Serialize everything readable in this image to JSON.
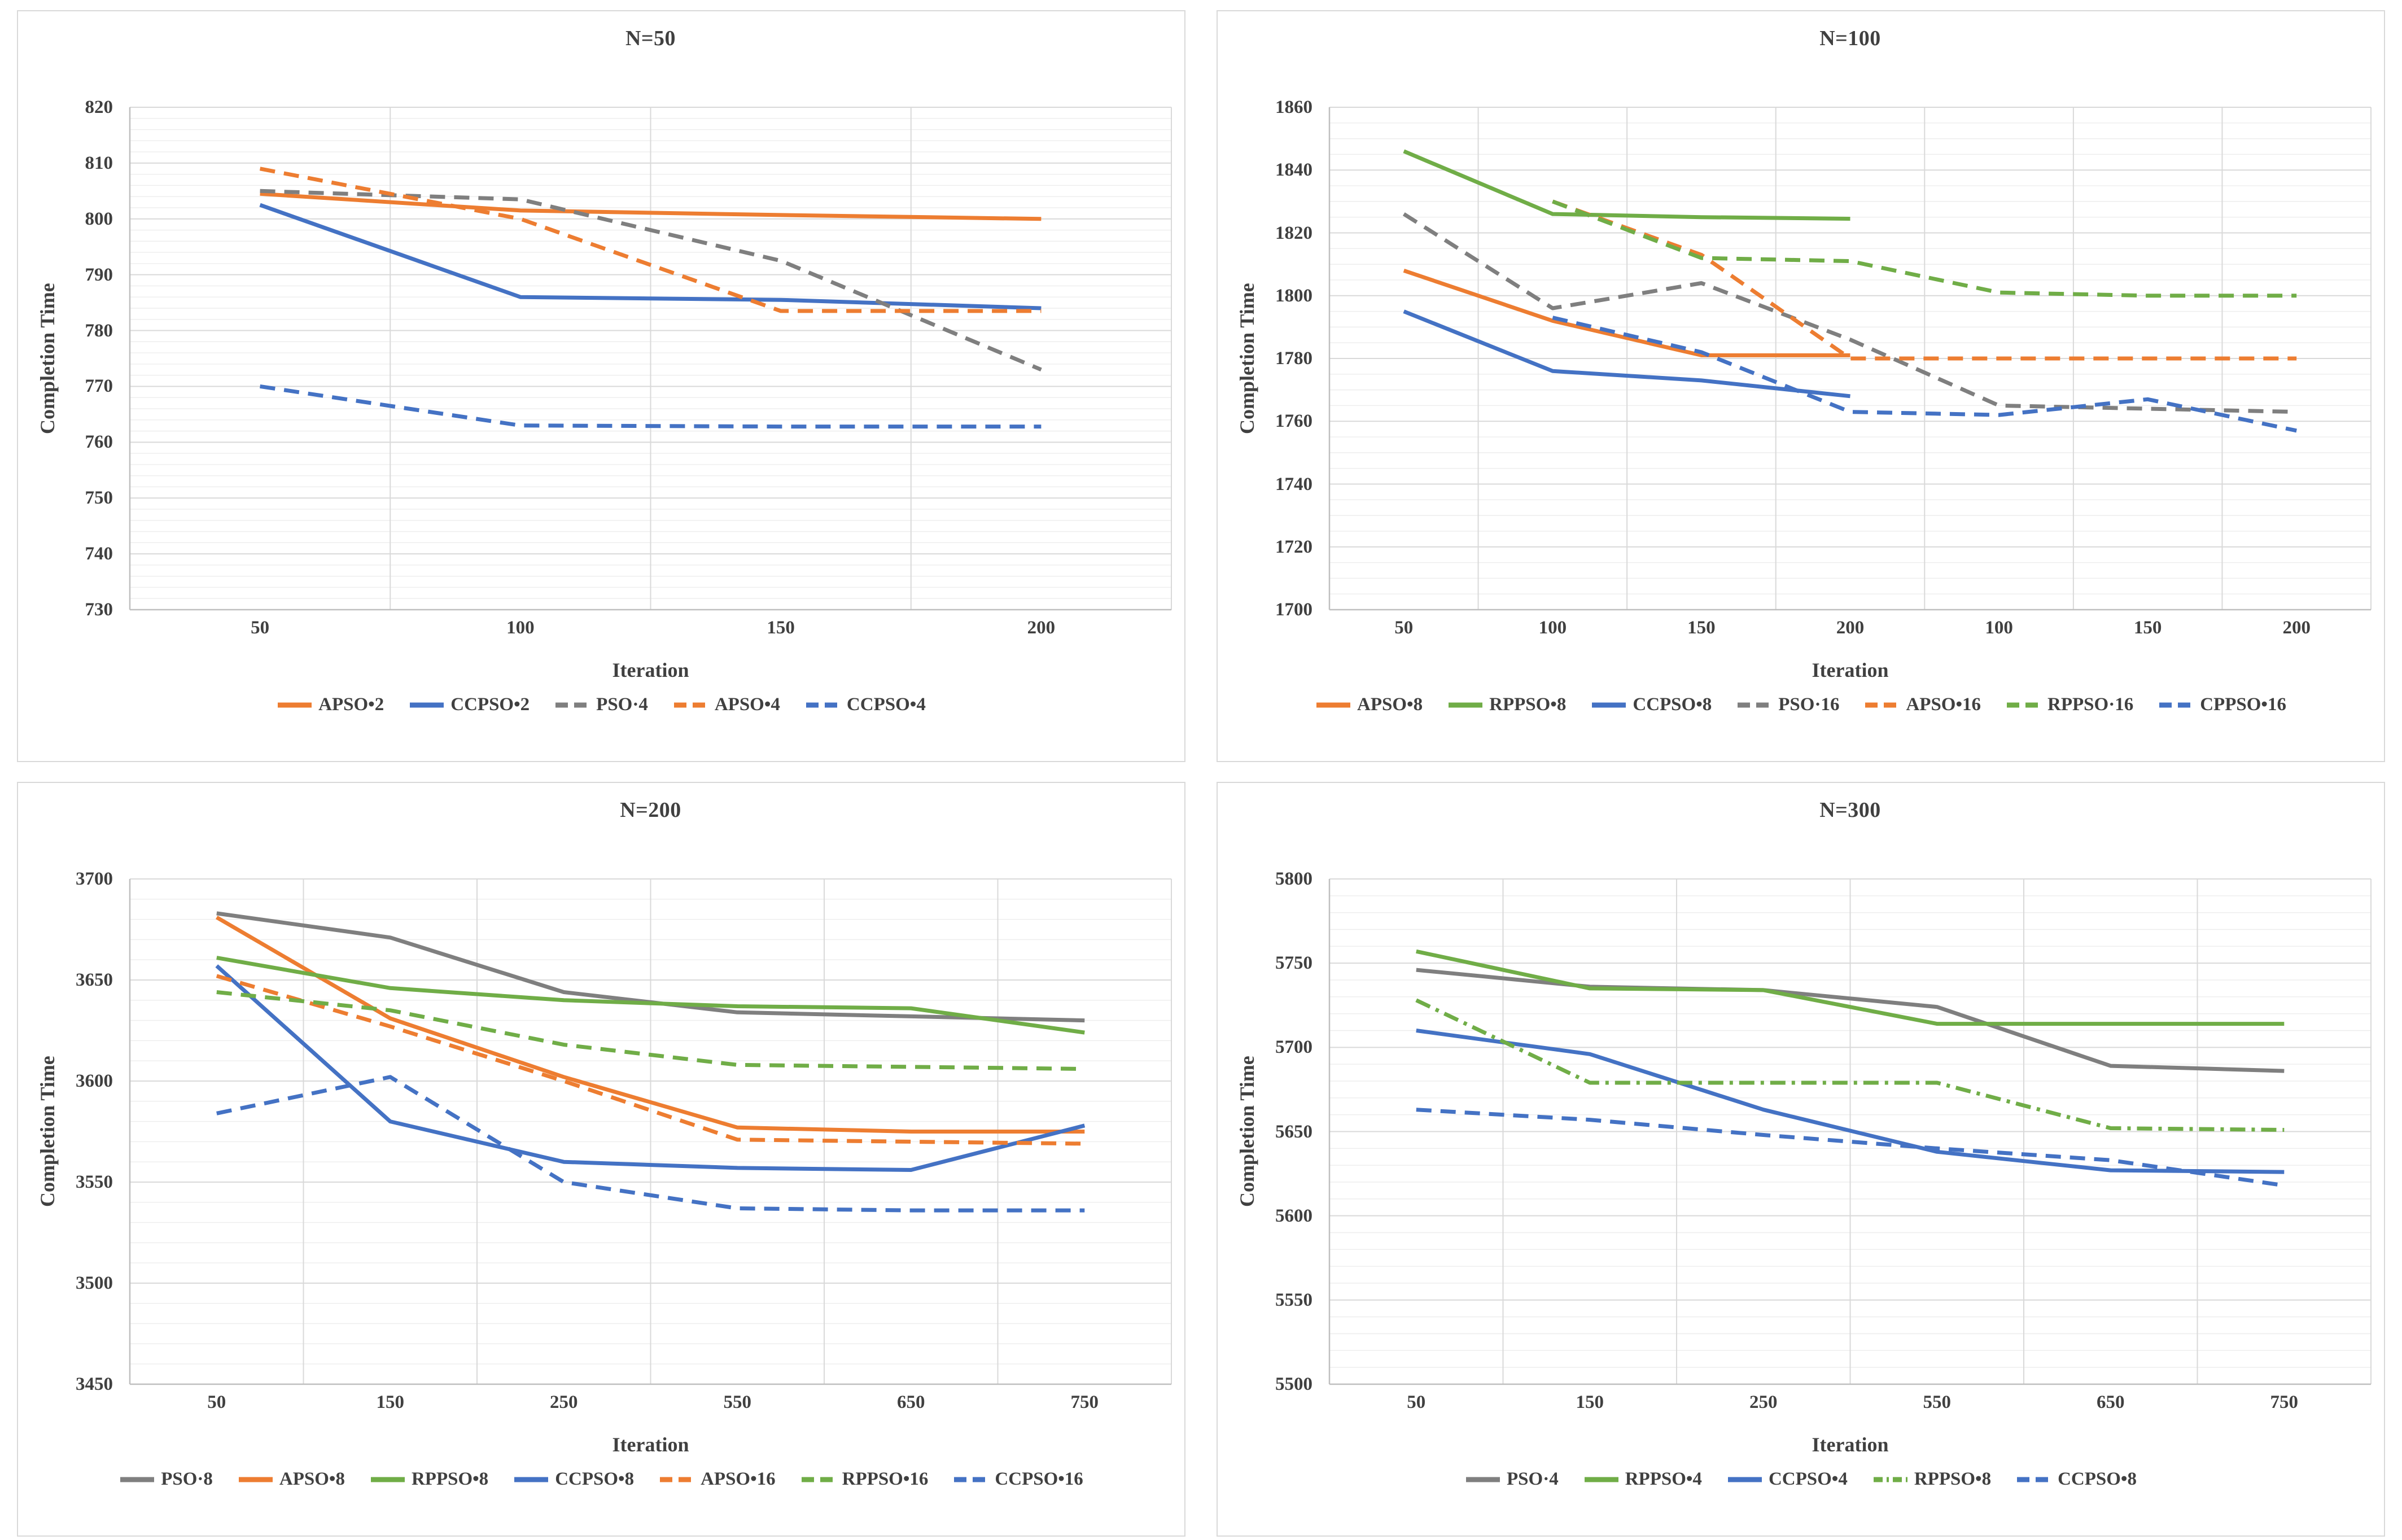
{
  "chart_data": [
    {
      "type": "line",
      "title": "N=50",
      "xlabel": "Iteration",
      "ylabel": "Completion Time",
      "categories": [
        "50",
        "100",
        "150",
        "200"
      ],
      "y_axis": {
        "min": 730,
        "max": 820,
        "major_step": 10,
        "minor_step": 2
      },
      "legend_position": "bottom",
      "grid": true,
      "series": [
        {
          "name": "APSO•2",
          "color": "#ED7D31",
          "style": "solid",
          "values": [
            804.5,
            801.5,
            800.7,
            800
          ]
        },
        {
          "name": "CCPSO•2",
          "color": "#4472C4",
          "style": "solid",
          "values": [
            802.5,
            786,
            785.5,
            784
          ]
        },
        {
          "name": "PSO·4",
          "color": "#7F7F7F",
          "style": "dash",
          "values": [
            805,
            803.5,
            792.5,
            773
          ]
        },
        {
          "name": "APSO•4",
          "color": "#ED7D31",
          "style": "dash",
          "values": [
            809,
            800,
            783.5,
            783.5
          ]
        },
        {
          "name": "CCPSO•4",
          "color": "#4472C4",
          "style": "dash",
          "values": [
            770,
            763,
            762.8,
            762.8
          ]
        }
      ]
    },
    {
      "type": "line",
      "title": "N=100",
      "xlabel": "Iteration",
      "ylabel": "Completion Time",
      "categories": [
        "50",
        "100",
        "150",
        "200",
        "100",
        "150",
        "200"
      ],
      "y_axis": {
        "min": 1700,
        "max": 1860,
        "major_step": 20,
        "minor_step": 5
      },
      "legend_position": "bottom",
      "grid": true,
      "series": [
        {
          "name": "APSO•8",
          "color": "#ED7D31",
          "style": "solid",
          "values": [
            1808,
            1792,
            1781,
            1781,
            null,
            null,
            null
          ]
        },
        {
          "name": "RPPSO•8",
          "color": "#70AD47",
          "style": "solid",
          "values": [
            1846,
            1826,
            1825,
            1824.5,
            null,
            null,
            null
          ]
        },
        {
          "name": "CCPSO•8",
          "color": "#4472C4",
          "style": "solid",
          "values": [
            1795,
            1776,
            1773,
            1768,
            null,
            null,
            null
          ]
        },
        {
          "name": "PSO·16",
          "color": "#7F7F7F",
          "style": "dash",
          "values": [
            1826,
            1796,
            1804,
            1786,
            1765,
            1764,
            1763
          ]
        },
        {
          "name": "APSO•16",
          "color": "#ED7D31",
          "style": "dash",
          "values": [
            null,
            1830,
            1813,
            1780,
            1780,
            1780,
            1780
          ]
        },
        {
          "name": "RPPSO·16",
          "color": "#70AD47",
          "style": "dash",
          "values": [
            null,
            1830,
            1812,
            1811,
            1801,
            1800,
            1800
          ]
        },
        {
          "name": "CPPSO•16",
          "color": "#4472C4",
          "style": "dash",
          "values": [
            null,
            1793,
            1782,
            1763,
            1762,
            1767,
            1757
          ]
        }
      ]
    },
    {
      "type": "line",
      "title": "N=200",
      "xlabel": "Iteration",
      "ylabel": "Completion Time",
      "categories": [
        "50",
        "150",
        "250",
        "550",
        "650",
        "750"
      ],
      "y_axis": {
        "min": 3450,
        "max": 3700,
        "major_step": 50,
        "minor_step": 10
      },
      "legend_position": "bottom",
      "grid": true,
      "series": [
        {
          "name": "PSO·8",
          "color": "#7F7F7F",
          "style": "solid",
          "values": [
            3683,
            3671,
            3644,
            3634,
            3632,
            3630
          ]
        },
        {
          "name": "APSO•8",
          "color": "#ED7D31",
          "style": "solid",
          "values": [
            3681,
            3631,
            3602,
            3577,
            3575,
            3575
          ]
        },
        {
          "name": "RPPSO•8",
          "color": "#70AD47",
          "style": "solid",
          "values": [
            3661,
            3646,
            3640,
            3637,
            3636,
            3624
          ]
        },
        {
          "name": "CCPSO•8",
          "color": "#4472C4",
          "style": "solid",
          "values": [
            3657,
            3580,
            3560,
            3557,
            3556,
            3578
          ]
        },
        {
          "name": "APSO•16",
          "color": "#ED7D31",
          "style": "dash",
          "values": [
            3652,
            3627,
            3600,
            3571,
            3570,
            3569
          ]
        },
        {
          "name": "RPPSO•16",
          "color": "#70AD47",
          "style": "dash",
          "values": [
            3644,
            3635,
            3618,
            3608,
            3607,
            3606
          ]
        },
        {
          "name": "CCPSO•16",
          "color": "#4472C4",
          "style": "dash",
          "values": [
            3584,
            3602,
            3550,
            3537,
            3536,
            3536
          ]
        }
      ]
    },
    {
      "type": "line",
      "title": "N=300",
      "xlabel": "Iteration",
      "ylabel": "Completion Time",
      "categories": [
        "50",
        "150",
        "250",
        "550",
        "650",
        "750"
      ],
      "y_axis": {
        "min": 5500,
        "max": 5800,
        "major_step": 50,
        "minor_step": 10
      },
      "legend_position": "bottom",
      "grid": true,
      "series": [
        {
          "name": "PSO·4",
          "color": "#7F7F7F",
          "style": "solid",
          "values": [
            5746,
            5736,
            5734,
            5724,
            5689,
            5686
          ]
        },
        {
          "name": "RPPSO•4",
          "color": "#70AD47",
          "style": "solid",
          "values": [
            5757,
            5735,
            5734,
            5714,
            5714,
            5714
          ]
        },
        {
          "name": "CCPSO•4",
          "color": "#4472C4",
          "style": "solid",
          "values": [
            5710,
            5696,
            5663,
            5638,
            5627,
            5626
          ]
        },
        {
          "name": "RPPSO•8",
          "color": "#70AD47",
          "style": "dashdot",
          "values": [
            5728,
            5679,
            5679,
            5679,
            5652,
            5651
          ]
        },
        {
          "name": "CCPSO•8",
          "color": "#4472C4",
          "style": "dash",
          "values": [
            5663,
            5657,
            5648,
            5640,
            5633,
            5618
          ]
        }
      ]
    }
  ],
  "style_colors": {
    "text": "#404040",
    "axis_line": "#BFBFBF",
    "major_grid": "#D9D9D9",
    "minor_grid": "#EDEDED",
    "panel_border": "#D9D9D9"
  }
}
